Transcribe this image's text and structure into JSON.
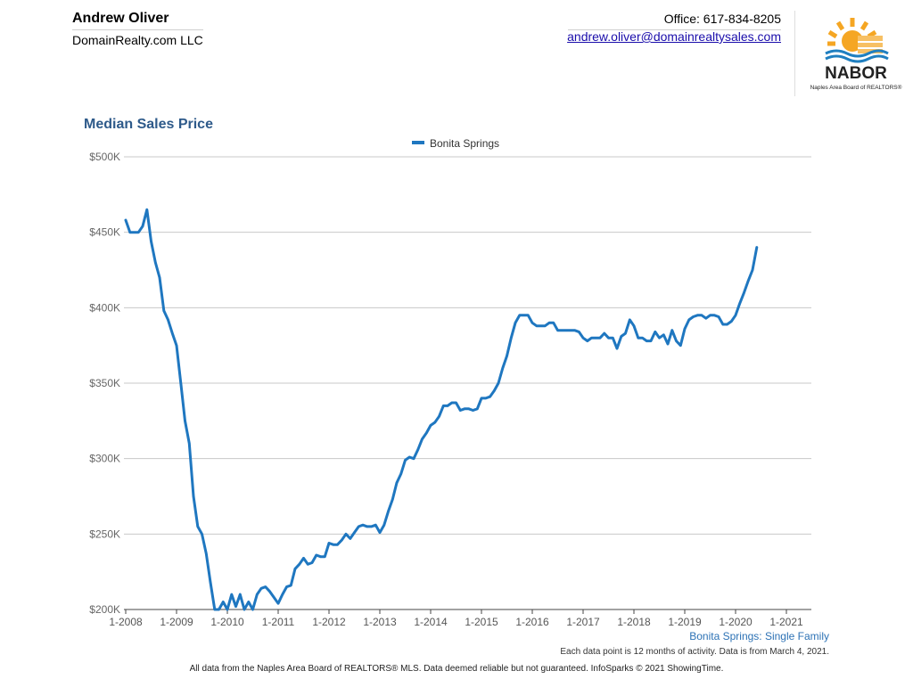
{
  "header": {
    "agent_name": "Andrew Oliver",
    "company": "DomainRealty.com LLC",
    "office": "Office: 617-834-8205",
    "email": "andrew.oliver@domainrealtysales.com",
    "logo": {
      "wordmark": "NABOR",
      "tagline": "Naples Area Board of REALTORS®",
      "accent_color": "#f5a623",
      "wave_color": "#1f7fc0"
    }
  },
  "chart_data": {
    "type": "line",
    "title": "Median Sales Price",
    "xlabel": "",
    "ylabel": "",
    "ylim": [
      200000,
      500000
    ],
    "y_ticks": [
      {
        "value": 200000,
        "label": "$200K"
      },
      {
        "value": 250000,
        "label": "$250K"
      },
      {
        "value": 300000,
        "label": "$300K"
      },
      {
        "value": 350000,
        "label": "$350K"
      },
      {
        "value": 400000,
        "label": "$400K"
      },
      {
        "value": 450000,
        "label": "$450K"
      },
      {
        "value": 500000,
        "label": "$500K"
      }
    ],
    "x_ticks": [
      "1-2008",
      "1-2009",
      "1-2010",
      "1-2011",
      "1-2012",
      "1-2013",
      "1-2014",
      "1-2015",
      "1-2016",
      "1-2017",
      "1-2018",
      "1-2019",
      "1-2020",
      "1-2021"
    ],
    "x_start": "1-2008",
    "grid": true,
    "legend_position": "top-center",
    "series": [
      {
        "name": "Bonita Springs",
        "color": "#1f77c0",
        "values": [
          458000,
          450000,
          450000,
          450000,
          454000,
          465000,
          444000,
          430000,
          420000,
          398000,
          392000,
          383000,
          375000,
          350000,
          325000,
          310000,
          275000,
          255000,
          250000,
          237000,
          218000,
          200000,
          200000,
          205000,
          200000,
          210000,
          202000,
          210000,
          200000,
          205000,
          200000,
          210000,
          214000,
          215000,
          212000,
          208000,
          204000,
          210000,
          215000,
          216000,
          227000,
          230000,
          234000,
          230000,
          231000,
          236000,
          235000,
          235000,
          244000,
          243000,
          243000,
          246000,
          250000,
          247000,
          251000,
          255000,
          256000,
          255000,
          255000,
          256000,
          251000,
          256000,
          265000,
          273000,
          284000,
          290000,
          299000,
          301000,
          300000,
          306000,
          313000,
          317000,
          322000,
          324000,
          328000,
          335000,
          335000,
          337000,
          337000,
          332000,
          333000,
          333000,
          332000,
          333000,
          340000,
          340000,
          341000,
          345000,
          350000,
          360000,
          368000,
          380000,
          390000,
          395000,
          395000,
          395000,
          390000,
          388000,
          388000,
          388000,
          390000,
          390000,
          385000,
          385000,
          385000,
          385000,
          385000,
          384000,
          380000,
          378000,
          380000,
          380000,
          380000,
          383000,
          380000,
          380000,
          373000,
          381000,
          383000,
          392000,
          388000,
          380000,
          380000,
          378000,
          378000,
          384000,
          380000,
          382000,
          376000,
          385000,
          378000,
          375000,
          386000,
          392000,
          394000,
          395000,
          395000,
          393000,
          395000,
          395000,
          394000,
          389000,
          389000,
          391000,
          395000,
          403000,
          410000,
          418000,
          425000,
          440000
        ]
      }
    ]
  },
  "footer": {
    "caption": "Bonita Springs: Single Family",
    "note": "Each data point is 12 months of activity. Data is from March 4, 2021.",
    "disclaimer": "All data from the Naples Area Board of REALTORS® MLS. Data deemed reliable but not guaranteed. InfoSparks © 2021 ShowingTime."
  }
}
